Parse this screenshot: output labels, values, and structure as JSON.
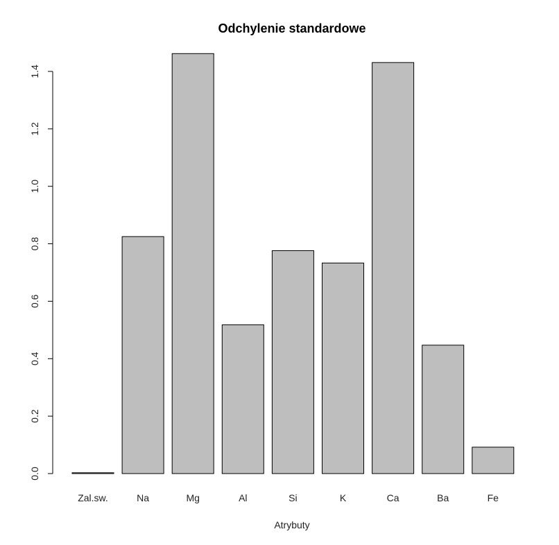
{
  "chart_data": {
    "type": "bar",
    "title": "Odchylenie standardowe",
    "xlabel": "Atrybuty",
    "ylabel": "",
    "ylim": [
      0,
      1.4
    ],
    "yticks": [
      "0.0",
      "0.2",
      "0.4",
      "0.6",
      "0.8",
      "1.0",
      "1.2",
      "1.4"
    ],
    "categories": [
      "Zal.sw.",
      "Na",
      "Mg",
      "Al",
      "Si",
      "K",
      "Ca",
      "Ba",
      "Fe"
    ],
    "values": [
      0.003,
      0.825,
      1.462,
      0.518,
      0.776,
      0.733,
      1.431,
      0.447,
      0.092
    ],
    "bar_color": "#bebebe",
    "grid": false,
    "legend": "none"
  }
}
